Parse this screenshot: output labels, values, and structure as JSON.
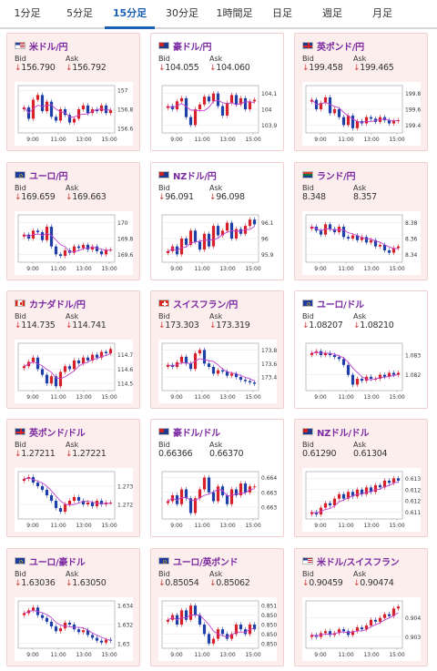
{
  "tabs": [
    {
      "label": "1分足",
      "active": false
    },
    {
      "label": "5分足",
      "active": false
    },
    {
      "label": "15分足",
      "active": true
    },
    {
      "label": "30分足",
      "active": false
    },
    {
      "label": "1時間足",
      "active": false
    },
    {
      "label": "日足",
      "active": false
    },
    {
      "label": "週足",
      "active": false
    },
    {
      "label": "月足",
      "active": false
    }
  ],
  "labels": {
    "bid": "Bid",
    "ask": "Ask",
    "down_arrow": "↓"
  },
  "colors": {
    "up": "#d8202a",
    "down": "#1f3fa8",
    "ma": "#c040d0",
    "tab_active": "#1a5fb4",
    "title": "#7a2aa0",
    "card_pink": "#fdeeee"
  },
  "cards": [
    {
      "pair": "米ドル/円",
      "flag": "us-jp-flag",
      "bid": "156.790",
      "ask": "156.792",
      "bid_down": true,
      "ask_down": true,
      "bg": "pink",
      "chart": {
        "x_ticks": [
          "9:00",
          "11:00",
          "13:00",
          "15:00"
        ],
        "y_ticks": [
          "157",
          "156.8",
          "156.6"
        ],
        "y_range": [
          156.55,
          157.05
        ],
        "series": [
          156.82,
          156.7,
          156.9,
          156.95,
          156.78,
          156.88,
          156.72,
          156.68,
          156.8,
          156.74,
          156.66,
          156.7,
          156.8,
          156.84,
          156.76,
          156.8,
          156.78,
          156.84,
          156.76,
          156.79
        ]
      }
    },
    {
      "pair": "豪ドル/円",
      "flag": "au-jp-flag",
      "bid": "104.055",
      "ask": "104.060",
      "bid_down": true,
      "ask_down": true,
      "bg": "white",
      "chart": {
        "x_ticks": [
          "9:00",
          "11:00",
          "13:00",
          "15:00"
        ],
        "y_ticks": [
          "104.1",
          "104",
          "103.9"
        ],
        "y_range": [
          103.85,
          104.15
        ],
        "series": [
          104.02,
          104.0,
          104.05,
          104.07,
          103.95,
          103.9,
          104.0,
          104.03,
          104.08,
          104.05,
          104.1,
          104.02,
          103.96,
          104.04,
          104.09,
          104.03,
          104.07,
          104.0,
          104.05,
          104.06
        ]
      }
    },
    {
      "pair": "英ポンド/円",
      "flag": "gb-jp-flag",
      "bid": "199.458",
      "ask": "199.465",
      "bid_down": true,
      "ask_down": true,
      "bg": "pink",
      "chart": {
        "x_ticks": [
          "9:00",
          "11:00",
          "13:00",
          "15:00"
        ],
        "y_ticks": [
          "199.8",
          "199.6",
          "199.4"
        ],
        "y_range": [
          199.3,
          199.9
        ],
        "series": [
          199.72,
          199.6,
          199.68,
          199.75,
          199.55,
          199.6,
          199.5,
          199.4,
          199.52,
          199.36,
          199.45,
          199.42,
          199.5,
          199.48,
          199.44,
          199.5,
          199.46,
          199.42,
          199.45,
          199.46
        ]
      }
    },
    {
      "pair": "ユーロ/円",
      "flag": "eu-jp-flag",
      "bid": "169.659",
      "ask": "169.663",
      "bid_down": true,
      "ask_down": true,
      "bg": "pink",
      "chart": {
        "x_ticks": [
          "9:00",
          "11:00",
          "13:00",
          "15:00"
        ],
        "y_ticks": [
          "170",
          "169.8",
          "169.6"
        ],
        "y_range": [
          169.5,
          170.1
        ],
        "series": [
          169.85,
          169.8,
          169.9,
          169.88,
          169.78,
          169.95,
          169.7,
          169.6,
          169.58,
          169.65,
          169.62,
          169.7,
          169.68,
          169.72,
          169.66,
          169.7,
          169.64,
          169.6,
          169.66,
          169.66
        ]
      }
    },
    {
      "pair": "NZドル/円",
      "flag": "nz-jp-flag",
      "bid": "96.091",
      "ask": "96.098",
      "bid_down": true,
      "ask_down": true,
      "bg": "white",
      "chart": {
        "x_ticks": [
          "9:00",
          "11:00",
          "13:00",
          "15:00"
        ],
        "y_ticks": [
          "96.1",
          "96",
          "95.9"
        ],
        "y_range": [
          95.85,
          96.15
        ],
        "series": [
          95.92,
          95.95,
          95.9,
          96.0,
          95.96,
          96.05,
          95.98,
          95.93,
          96.03,
          95.95,
          96.08,
          96.02,
          96.05,
          96.1,
          96.0,
          96.06,
          96.03,
          96.08,
          96.12,
          96.09
        ]
      }
    },
    {
      "pair": "ランド/円",
      "flag": "za-jp-flag",
      "bid": "8.348",
      "ask": "8.357",
      "bid_down": false,
      "ask_down": false,
      "bg": "pink",
      "chart": {
        "x_ticks": [
          "9:00",
          "11:00",
          "13:00",
          "15:00"
        ],
        "y_ticks": [
          "8.38",
          "8.36",
          "8.34"
        ],
        "y_range": [
          8.33,
          8.39
        ],
        "series": [
          8.375,
          8.37,
          8.365,
          8.378,
          8.372,
          8.368,
          8.375,
          8.362,
          8.36,
          8.364,
          8.358,
          8.362,
          8.355,
          8.358,
          8.35,
          8.352,
          8.345,
          8.342,
          8.348,
          8.35
        ]
      }
    },
    {
      "pair": "カナダドル/円",
      "flag": "ca-jp-flag",
      "bid": "114.735",
      "ask": "114.741",
      "bid_down": true,
      "ask_down": true,
      "bg": "pink",
      "chart": {
        "x_ticks": [
          "9:00",
          "11:00",
          "13:00",
          "15:00"
        ],
        "y_ticks": [
          "114.7",
          "114.6",
          "114.5"
        ],
        "y_range": [
          114.45,
          114.78
        ],
        "series": [
          114.62,
          114.65,
          114.68,
          114.6,
          114.56,
          114.5,
          114.55,
          114.48,
          114.58,
          114.62,
          114.6,
          114.66,
          114.64,
          114.68,
          114.66,
          114.7,
          114.68,
          114.72,
          114.71,
          114.74
        ]
      }
    },
    {
      "pair": "スイスフラン/円",
      "flag": "ch-jp-flag",
      "bid": "173.303",
      "ask": "173.319",
      "bid_down": true,
      "ask_down": true,
      "bg": "pink",
      "chart": {
        "x_ticks": [
          "9:00",
          "11:00",
          "13:00",
          "15:00"
        ],
        "y_ticks": [
          "173.8",
          "173.6",
          "173.4"
        ],
        "y_range": [
          173.2,
          173.9
        ],
        "series": [
          173.58,
          173.55,
          173.62,
          173.7,
          173.6,
          173.52,
          173.75,
          173.8,
          173.6,
          173.55,
          173.45,
          173.5,
          173.48,
          173.42,
          173.45,
          173.4,
          173.36,
          173.34,
          173.32,
          173.3
        ]
      }
    },
    {
      "pair": "ユーロ/ドル",
      "flag": "eu-us-flag",
      "bid": "1.08207",
      "ask": "1.08210",
      "bid_down": true,
      "ask_down": true,
      "bg": "white",
      "chart": {
        "x_ticks": [
          "9:00",
          "11:00",
          "13:00",
          "15:00"
        ],
        "y_ticks": [
          "1.083",
          "1.082"
        ],
        "y_range": [
          1.0812,
          1.0836
        ],
        "series": [
          1.0831,
          1.0832,
          1.083,
          1.0831,
          1.083,
          1.0829,
          1.0828,
          1.0825,
          1.082,
          1.0815,
          1.0818,
          1.0817,
          1.0819,
          1.0818,
          1.0818,
          1.082,
          1.0819,
          1.0821,
          1.082,
          1.0821
        ]
      }
    },
    {
      "pair": "英ポンド/ドル",
      "flag": "gb-us-flag",
      "bid": "1.27211",
      "ask": "1.27221",
      "bid_down": true,
      "ask_down": true,
      "bg": "pink",
      "chart": {
        "x_ticks": [
          "9:00",
          "11:00",
          "13:00",
          "15:00"
        ],
        "y_ticks": [
          "1.273",
          "1.272"
        ],
        "y_range": [
          1.2712,
          1.2738
        ],
        "series": [
          1.2734,
          1.2735,
          1.2732,
          1.273,
          1.2728,
          1.2725,
          1.2722,
          1.2718,
          1.2716,
          1.272,
          1.2722,
          1.2724,
          1.2722,
          1.272,
          1.2721,
          1.2719,
          1.2722,
          1.272,
          1.2721,
          1.2721
        ]
      }
    },
    {
      "pair": "豪ドル/ドル",
      "flag": "au-us-flag",
      "bid": "0.66366",
      "ask": "0.66370",
      "bid_down": false,
      "ask_down": false,
      "bg": "white",
      "chart": {
        "x_ticks": [
          "9:00",
          "11:00",
          "13:00",
          "15:00"
        ],
        "y_ticks": [
          "0.664",
          "0.6635",
          "0.663"
        ],
        "y_range": [
          0.6626,
          0.6642
        ],
        "series": [
          0.6632,
          0.6634,
          0.6631,
          0.6636,
          0.6633,
          0.6628,
          0.6633,
          0.6636,
          0.664,
          0.6635,
          0.6632,
          0.6637,
          0.6634,
          0.6631,
          0.6636,
          0.6634,
          0.6638,
          0.6635,
          0.6637,
          0.6637
        ]
      }
    },
    {
      "pair": "NZドル/ドル",
      "flag": "nz-us-flag",
      "bid": "0.61290",
      "ask": "0.61304",
      "bid_down": false,
      "ask_down": false,
      "bg": "pink",
      "chart": {
        "x_ticks": [
          "9:00",
          "11:00",
          "13:00",
          "15:00"
        ],
        "y_ticks": [
          "0.613",
          "0.6125",
          "0.612",
          "0.6115"
        ],
        "y_range": [
          0.6112,
          0.6133
        ],
        "series": [
          0.6115,
          0.6114,
          0.6117,
          0.6119,
          0.6118,
          0.6121,
          0.6123,
          0.6121,
          0.6124,
          0.6122,
          0.6125,
          0.6123,
          0.6126,
          0.6124,
          0.6127,
          0.6126,
          0.6129,
          0.6128,
          0.613,
          0.6129
        ]
      }
    },
    {
      "pair": "ユーロ/豪ドル",
      "flag": "eu-au-flag",
      "bid": "1.63036",
      "ask": "1.63050",
      "bid_down": true,
      "ask_down": true,
      "bg": "pink",
      "chart": {
        "x_ticks": [
          "9:00",
          "11:00",
          "13:00",
          "15:00"
        ],
        "y_ticks": [
          "1.634",
          "1.632",
          "1.63"
        ],
        "y_range": [
          1.6295,
          1.6345
        ],
        "series": [
          1.6332,
          1.6335,
          1.6338,
          1.633,
          1.6327,
          1.6323,
          1.6318,
          1.6313,
          1.6316,
          1.6322,
          1.632,
          1.6315,
          1.6312,
          1.6314,
          1.6309,
          1.6306,
          1.6303,
          1.6301,
          1.6304,
          1.6303
        ]
      }
    },
    {
      "pair": "ユーロ/英ポンド",
      "flag": "eu-gb-flag",
      "bid": "0.85054",
      "ask": "0.85062",
      "bid_down": true,
      "ask_down": true,
      "bg": "pink",
      "chart": {
        "x_ticks": [
          "9:00",
          "11:00",
          "13:00",
          "15:00"
        ],
        "y_ticks": [
          "0.851",
          "0.8508",
          "0.8506",
          "0.8504",
          "0.8502"
        ],
        "y_range": [
          0.8501,
          0.8511
        ],
        "series": [
          0.8507,
          0.8508,
          0.8506,
          0.8509,
          0.8507,
          0.851,
          0.8508,
          0.8506,
          0.8504,
          0.8502,
          0.8503,
          0.8505,
          0.8504,
          0.8503,
          0.8504,
          0.8506,
          0.8505,
          0.8504,
          0.8506,
          0.8505
        ]
      }
    },
    {
      "pair": "米ドル/スイスフラン",
      "flag": "us-ch-flag",
      "bid": "0.90459",
      "ask": "0.90474",
      "bid_down": true,
      "ask_down": true,
      "bg": "pink",
      "chart": {
        "x_ticks": [
          "9:00",
          "11:00",
          "13:00",
          "15:00"
        ],
        "y_ticks": [
          "0.904",
          "0.903"
        ],
        "y_range": [
          0.9024,
          0.9049
        ],
        "series": [
          0.9031,
          0.903,
          0.9032,
          0.9033,
          0.9031,
          0.9032,
          0.9034,
          0.9033,
          0.9031,
          0.9033,
          0.9035,
          0.9034,
          0.9036,
          0.9039,
          0.9038,
          0.904,
          0.9042,
          0.9041,
          0.9045,
          0.9046
        ]
      }
    }
  ]
}
